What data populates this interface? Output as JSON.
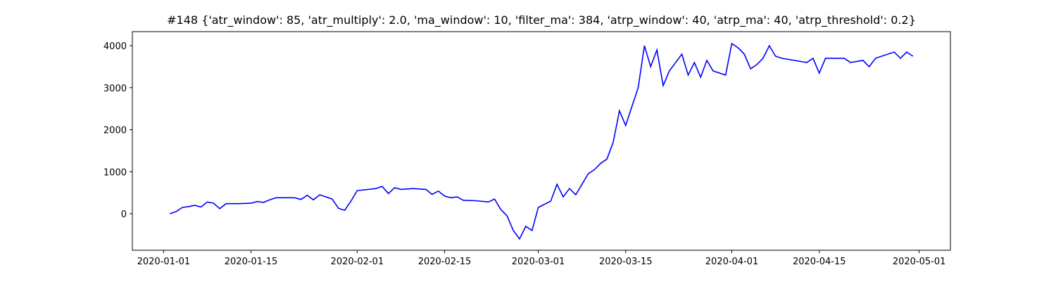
{
  "chart_data": {
    "type": "line",
    "title": "#148 {'atr_window': 85, 'atr_multiply': 2.0, 'ma_window': 10, 'filter_ma': 384, 'atrp_window': 40, 'atrp_ma': 40, 'atrp_threshold': 0.2}",
    "x": [
      "2020-01-02",
      "2020-01-03",
      "2020-01-04",
      "2020-01-05",
      "2020-01-06",
      "2020-01-07",
      "2020-01-08",
      "2020-01-09",
      "2020-01-10",
      "2020-01-11",
      "2020-01-13",
      "2020-01-15",
      "2020-01-16",
      "2020-01-17",
      "2020-01-18",
      "2020-01-19",
      "2020-01-22",
      "2020-01-23",
      "2020-01-24",
      "2020-01-25",
      "2020-01-26",
      "2020-01-28",
      "2020-01-29",
      "2020-01-30",
      "2020-01-31",
      "2020-02-01",
      "2020-02-04",
      "2020-02-05",
      "2020-02-06",
      "2020-02-07",
      "2020-02-08",
      "2020-02-10",
      "2020-02-12",
      "2020-02-13",
      "2020-02-14",
      "2020-02-15",
      "2020-02-16",
      "2020-02-17",
      "2020-02-18",
      "2020-02-20",
      "2020-02-22",
      "2020-02-23",
      "2020-02-24",
      "2020-02-25",
      "2020-02-26",
      "2020-02-27",
      "2020-02-28",
      "2020-02-29",
      "2020-03-01",
      "2020-03-03",
      "2020-03-04",
      "2020-03-05",
      "2020-03-06",
      "2020-03-07",
      "2020-03-08",
      "2020-03-09",
      "2020-03-10",
      "2020-03-11",
      "2020-03-12",
      "2020-03-13",
      "2020-03-14",
      "2020-03-15",
      "2020-03-17",
      "2020-03-18",
      "2020-03-19",
      "2020-03-20",
      "2020-03-21",
      "2020-03-22",
      "2020-03-24",
      "2020-03-25",
      "2020-03-26",
      "2020-03-27",
      "2020-03-28",
      "2020-03-29",
      "2020-03-31",
      "2020-04-01",
      "2020-04-02",
      "2020-04-03",
      "2020-04-04",
      "2020-04-05",
      "2020-04-06",
      "2020-04-07",
      "2020-04-08",
      "2020-04-09",
      "2020-04-13",
      "2020-04-14",
      "2020-04-15",
      "2020-04-16",
      "2020-04-19",
      "2020-04-20",
      "2020-04-22",
      "2020-04-23",
      "2020-04-24",
      "2020-04-27",
      "2020-04-28",
      "2020-04-29",
      "2020-04-30"
    ],
    "series": [
      {
        "color": "#0000ff",
        "values": [
          0,
          50,
          150,
          170,
          200,
          160,
          280,
          250,
          120,
          240,
          240,
          250,
          290,
          270,
          330,
          380,
          380,
          340,
          440,
          330,
          450,
          350,
          130,
          80,
          300,
          550,
          600,
          650,
          480,
          620,
          580,
          600,
          580,
          460,
          540,
          420,
          380,
          400,
          320,
          310,
          280,
          350,
          100,
          -50,
          -400,
          -600,
          -300,
          -400,
          150,
          300,
          700,
          400,
          600,
          450,
          700,
          950,
          1050,
          1200,
          1300,
          1700,
          2450,
          2100,
          3000,
          4000,
          3500,
          3900,
          3050,
          3400,
          3800,
          3300,
          3600,
          3250,
          3650,
          3400,
          3300,
          4050,
          3950,
          3800,
          3450,
          3550,
          3700,
          4000,
          3750,
          3700,
          3600,
          3700,
          3350,
          3700,
          3700,
          3600,
          3650,
          3500,
          3700,
          3850,
          3700,
          3850,
          3750
        ]
      }
    ],
    "xlim": [
      "2019-12-27",
      "2020-05-06"
    ],
    "xticks": [
      "2020-01-01",
      "2020-01-15",
      "2020-02-01",
      "2020-02-15",
      "2020-03-01",
      "2020-03-15",
      "2020-04-01",
      "2020-04-15",
      "2020-05-01"
    ],
    "ylim": [
      -870,
      4335
    ],
    "yticks": [
      0,
      1000,
      2000,
      3000,
      4000
    ]
  }
}
